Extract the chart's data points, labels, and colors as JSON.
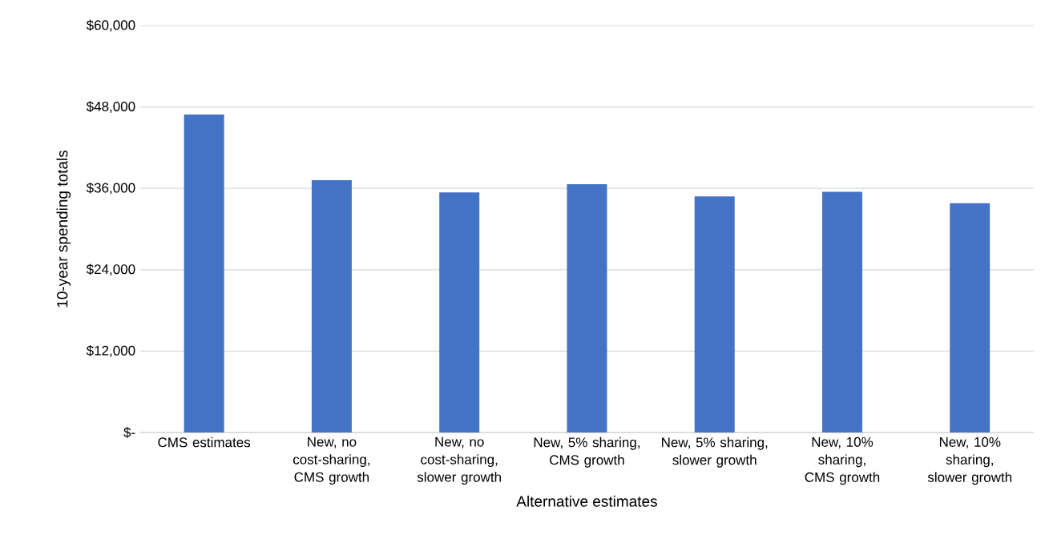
{
  "chart_data": {
    "type": "bar",
    "xlabel": "Alternative estimates",
    "ylabel": "10-year spending totals",
    "categories": [
      "CMS estimates",
      "New, no cost-sharing, CMS growth",
      "New, no cost-sharing, slower growth",
      "New, 5% sharing, CMS growth",
      "New, 5% sharing, slower growth",
      "New, 10% sharing, CMS growth",
      "New, 10% sharing, slower growth"
    ],
    "values": [
      46900,
      37200,
      35400,
      36600,
      34800,
      35500,
      33800
    ],
    "color": "#4472c4",
    "ylim": [
      0,
      60000
    ],
    "yticks": [
      {
        "value": 0,
        "label": "$-"
      },
      {
        "value": 12000,
        "label": "$12,000"
      },
      {
        "value": 24000,
        "label": "$24,000"
      },
      {
        "value": 36000,
        "label": "$36,000"
      },
      {
        "value": 48000,
        "label": "$48,000"
      },
      {
        "value": 60000,
        "label": "$60,000"
      }
    ],
    "grid": "y"
  }
}
